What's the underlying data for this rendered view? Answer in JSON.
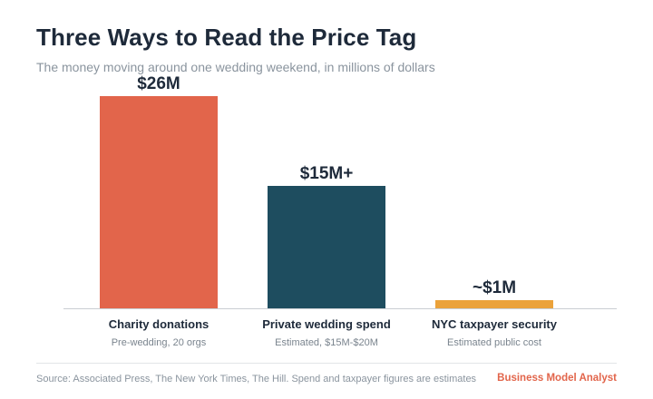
{
  "header": {
    "title": "Three Ways to Read the Price Tag",
    "subtitle": "The money moving around one wedding weekend, in millions of dollars"
  },
  "chart_data": {
    "type": "bar",
    "title": "Three Ways to Read the Price Tag",
    "subtitle": "The money moving around one wedding weekend, in millions of dollars",
    "xlabel": "",
    "ylabel": "",
    "ylim": [
      0,
      26
    ],
    "grid": false,
    "categories": [
      "Charity donations",
      "Private wedding spend",
      "NYC taxpayer security"
    ],
    "values": [
      26,
      15,
      1
    ],
    "data_labels": [
      "$26M",
      "$15M+",
      "~$1M"
    ],
    "sublabels": [
      "Pre-wedding, 20 orgs",
      "Estimated, $15M-$20M",
      "Estimated public cost"
    ],
    "colors": [
      "#e2654b",
      "#1e4d5f",
      "#eba23a"
    ]
  },
  "footer": {
    "source": "Source: Associated Press, The New York Times, The Hill. Spend and taxpayer figures are estimates",
    "brand": "Business Model Analyst"
  }
}
